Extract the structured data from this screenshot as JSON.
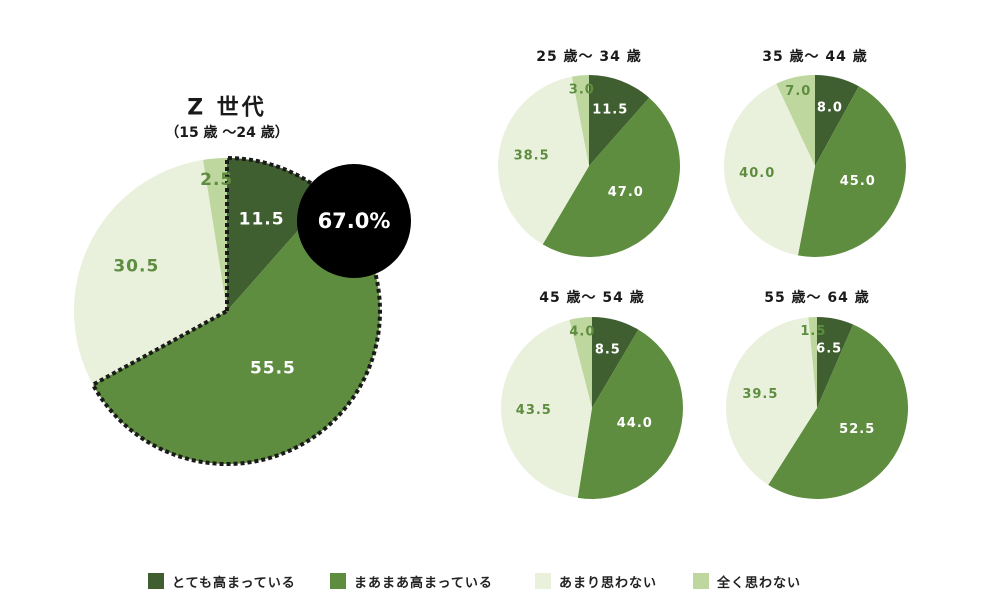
{
  "colors": {
    "very": "#3f5f31",
    "somewhat": "#5e8d3f",
    "not_much": "#e9f1dd",
    "not_at_all": "#bdd79f",
    "label_dark_bg": "#ffffff",
    "label_light_bg": "#5e8d3f",
    "callout_bg": "#000000"
  },
  "chart_data": [
    {
      "type": "pie",
      "title": "Z 世代",
      "subtitle": "（15 歳 ～24 歳）",
      "categories": [
        "とても高まっている",
        "まあまあ高まっている",
        "あまり思わない",
        "全く思わない"
      ],
      "values": [
        11.5,
        55.5,
        30.5,
        2.5
      ],
      "callout": "67.0%"
    },
    {
      "type": "pie",
      "title": "25 歳～ 34 歳",
      "categories": [
        "とても高まっている",
        "まあまあ高まっている",
        "あまり思わない",
        "全く思わない"
      ],
      "values": [
        11.5,
        47.0,
        38.5,
        3.0
      ]
    },
    {
      "type": "pie",
      "title": "35 歳～ 44 歳",
      "categories": [
        "とても高まっている",
        "まあまあ高まっている",
        "あまり思わない",
        "全く思わない"
      ],
      "values": [
        8.0,
        45.0,
        40.0,
        7.0
      ]
    },
    {
      "type": "pie",
      "title": "45 歳～ 54 歳",
      "categories": [
        "とても高まっている",
        "まあまあ高まっている",
        "あまり思わない",
        "全く思わない"
      ],
      "values": [
        8.5,
        44.0,
        43.5,
        4.0
      ]
    },
    {
      "type": "pie",
      "title": "55 歳～ 64 歳",
      "categories": [
        "とても高まっている",
        "まあまあ高まっている",
        "あまり思わない",
        "全く思わない"
      ],
      "values": [
        6.5,
        52.5,
        39.5,
        1.5
      ]
    }
  ],
  "legend": [
    {
      "label": "とても高まっている",
      "color": "#3f5f31"
    },
    {
      "label": "まあまあ高まっている",
      "color": "#5e8d3f"
    },
    {
      "label": "あまり思わない",
      "color": "#e9f1dd"
    },
    {
      "label": "全く思わない",
      "color": "#bdd79f"
    }
  ]
}
